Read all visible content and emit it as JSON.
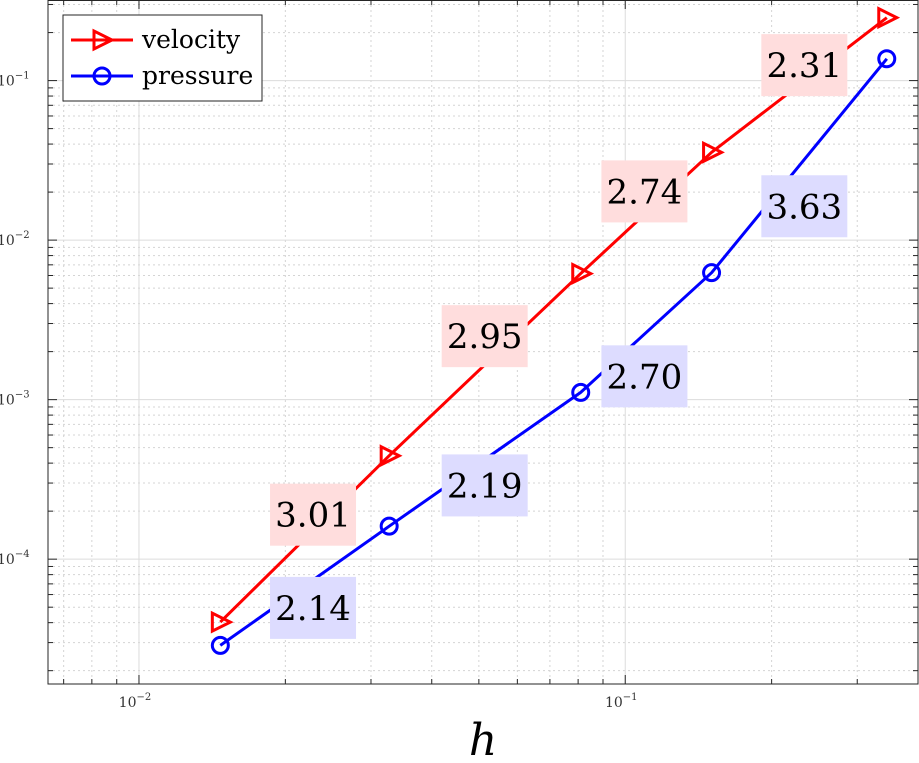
{
  "chart_data": {
    "type": "line",
    "xscale": "log",
    "yscale": "log",
    "xlabel": "h",
    "ylabel": "",
    "xlim": [
      0.0065,
      0.4
    ],
    "ylim": [
      1.65e-05,
      0.32
    ],
    "grid": true,
    "minor_grid": true,
    "legend_position": "top-left",
    "x_ticks": [
      {
        "value": 0.01,
        "base": "10",
        "exp": "−2"
      },
      {
        "value": 0.1,
        "base": "10",
        "exp": "−1"
      }
    ],
    "y_ticks": [
      {
        "value": 0.0001,
        "base": "10",
        "exp": "−4"
      },
      {
        "value": 0.001,
        "base": "10",
        "exp": "−3"
      },
      {
        "value": 0.01,
        "base": "10",
        "exp": "−2"
      },
      {
        "value": 0.1,
        "base": "10",
        "exp": "−1"
      }
    ],
    "series": [
      {
        "name": "velocity",
        "color": "#ff0000",
        "marker": "triangle-right",
        "x": [
          0.0147,
          0.0327,
          0.081,
          0.1505,
          0.345
        ],
        "y": [
          4.03e-05,
          0.000445,
          0.00617,
          0.0355,
          0.248
        ]
      },
      {
        "name": "pressure",
        "color": "#0000ff",
        "marker": "circle",
        "x": [
          0.0147,
          0.0327,
          0.081,
          0.1505,
          0.345
        ],
        "y": [
          2.88e-05,
          0.000161,
          0.00111,
          0.00625,
          0.137
        ]
      }
    ],
    "annotations": [
      {
        "text": "3.01",
        "series": "velocity",
        "bg": "#ffdddd",
        "x": 0.0228,
        "y": 0.00019
      },
      {
        "text": "2.95",
        "series": "velocity",
        "bg": "#ffdddd",
        "x": 0.0514,
        "y": 0.0025
      },
      {
        "text": "2.74",
        "series": "velocity",
        "bg": "#ffdddd",
        "x": 0.1095,
        "y": 0.0202
      },
      {
        "text": "2.31",
        "series": "velocity",
        "bg": "#ffdddd",
        "x": 0.2335,
        "y": 0.125
      },
      {
        "text": "2.14",
        "series": "pressure",
        "bg": "#dddcff",
        "x": 0.0228,
        "y": 4.95e-05
      },
      {
        "text": "2.19",
        "series": "pressure",
        "bg": "#dddcff",
        "x": 0.0514,
        "y": 0.00029
      },
      {
        "text": "2.70",
        "series": "pressure",
        "bg": "#dddcff",
        "x": 0.1095,
        "y": 0.0014
      },
      {
        "text": "3.63",
        "series": "pressure",
        "bg": "#dddcff",
        "x": 0.2335,
        "y": 0.0163
      }
    ]
  }
}
